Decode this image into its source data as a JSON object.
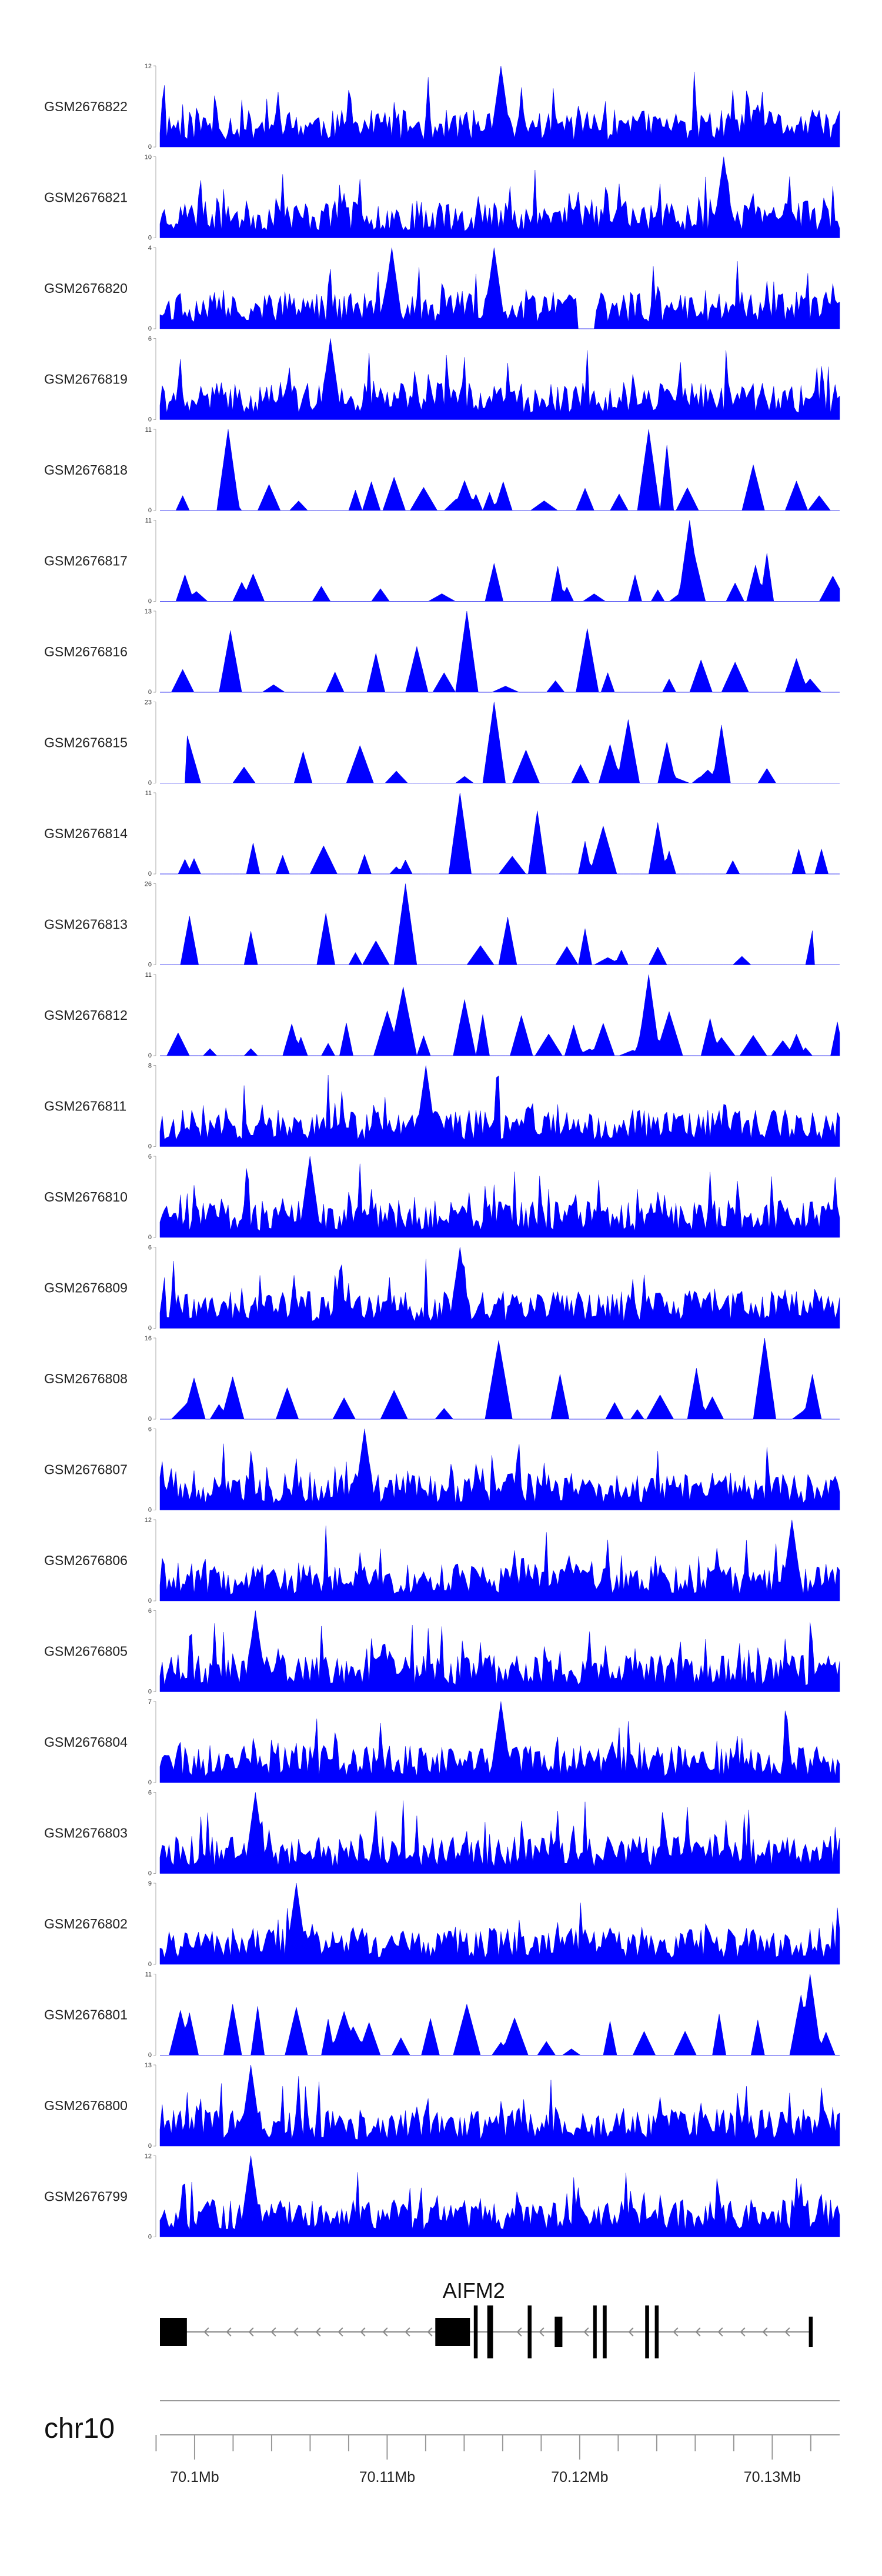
{
  "chart_data": {
    "type": "area",
    "title": "",
    "chromosome": "chr10",
    "gene": {
      "name": "AIFM2",
      "strand": "-"
    },
    "region": {
      "start_mb": 70.0982,
      "end_mb": 70.1335
    },
    "x_ticks": [
      {
        "mb": 70.1,
        "label": "70.1Mb"
      },
      {
        "mb": 70.11,
        "label": "70.11Mb"
      },
      {
        "mb": 70.12,
        "label": "70.12Mb"
      },
      {
        "mb": 70.13,
        "label": "70.13Mb"
      }
    ],
    "minor_ticks_mb": [
      70.098,
      70.102,
      70.104,
      70.106,
      70.108,
      70.112,
      70.114,
      70.116,
      70.118,
      70.122,
      70.124,
      70.126,
      70.128,
      70.132
    ],
    "exons": [
      {
        "start": 70.0982,
        "end": 70.0996,
        "height": "large"
      },
      {
        "start": 70.1125,
        "end": 70.1143,
        "height": "large"
      },
      {
        "start": 70.1145,
        "end": 70.1147,
        "height": "tall"
      },
      {
        "start": 70.1152,
        "end": 70.1155,
        "height": "tall"
      },
      {
        "start": 70.1173,
        "end": 70.1175,
        "height": "tall"
      },
      {
        "start": 70.1187,
        "end": 70.1191,
        "height": "mid"
      },
      {
        "start": 70.1207,
        "end": 70.1208,
        "height": "tall"
      },
      {
        "start": 70.1212,
        "end": 70.1214,
        "height": "tall"
      },
      {
        "start": 70.1234,
        "end": 70.1236,
        "height": "tall"
      },
      {
        "start": 70.1239,
        "end": 70.1241,
        "height": "tall"
      },
      {
        "start": 70.1319,
        "end": 70.1321,
        "height": "mid"
      }
    ],
    "series": [
      {
        "name": "GSM2676822",
        "ymax": 12,
        "sparsity": 0.0,
        "seed": 11,
        "peaks": [
          {
            "x": 0.5,
            "v": 12
          }
        ]
      },
      {
        "name": "GSM2676821",
        "ymax": 10,
        "sparsity": 0.0,
        "seed": 23,
        "peaks": [
          {
            "x": 0.83,
            "v": 10
          }
        ]
      },
      {
        "name": "GSM2676820",
        "ymax": 4,
        "sparsity": 0.0,
        "seed": 37,
        "peaks": [
          {
            "x": 0.34,
            "v": 4
          },
          {
            "x": 0.49,
            "v": 4
          }
        ],
        "gaps": [
          [
            0.615,
            0.64
          ]
        ]
      },
      {
        "name": "GSM2676819",
        "ymax": 6,
        "sparsity": 0.0,
        "seed": 41,
        "peaks": [
          {
            "x": 0.25,
            "v": 6
          }
        ]
      },
      {
        "name": "GSM2676818",
        "ymax": 11,
        "sparsity": 0.58,
        "seed": 53,
        "peaks": [
          {
            "x": 0.1,
            "v": 11
          },
          {
            "x": 0.72,
            "v": 11
          }
        ],
        "gaps": [
          [
            0.0,
            0.025
          ]
        ]
      },
      {
        "name": "GSM2676817",
        "ymax": 11,
        "sparsity": 0.62,
        "seed": 67,
        "peaks": [
          {
            "x": 0.78,
            "v": 11
          }
        ]
      },
      {
        "name": "GSM2676816",
        "ymax": 13,
        "sparsity": 0.55,
        "seed": 71,
        "peaks": [
          {
            "x": 0.45,
            "v": 13
          }
        ]
      },
      {
        "name": "GSM2676815",
        "ymax": 23,
        "sparsity": 0.72,
        "seed": 83,
        "peaks": [
          {
            "x": 0.49,
            "v": 23
          },
          {
            "x": 0.69,
            "v": 18
          }
        ],
        "gaps": [
          [
            0.0,
            0.04
          ],
          [
            0.965,
            1.0
          ]
        ]
      },
      {
        "name": "GSM2676814",
        "ymax": 11,
        "sparsity": 0.6,
        "seed": 97,
        "peaks": [
          {
            "x": 0.44,
            "v": 11
          }
        ]
      },
      {
        "name": "GSM2676813",
        "ymax": 26,
        "sparsity": 0.8,
        "seed": 101,
        "peaks": [
          {
            "x": 0.36,
            "v": 26
          }
        ],
        "gaps": [
          [
            0.96,
            1.0
          ]
        ]
      },
      {
        "name": "GSM2676812",
        "ymax": 11,
        "sparsity": 0.25,
        "seed": 113,
        "peaks": [
          {
            "x": 0.72,
            "v": 11
          }
        ]
      },
      {
        "name": "GSM2676811",
        "ymax": 8,
        "sparsity": 0.0,
        "seed": 127,
        "peaks": [
          {
            "x": 0.39,
            "v": 8
          }
        ]
      },
      {
        "name": "GSM2676810",
        "ymax": 6,
        "sparsity": 0.0,
        "seed": 131,
        "peaks": [
          {
            "x": 0.22,
            "v": 6
          }
        ]
      },
      {
        "name": "GSM2676809",
        "ymax": 6,
        "sparsity": 0.0,
        "seed": 149,
        "peaks": [
          {
            "x": 0.44,
            "v": 6
          }
        ]
      },
      {
        "name": "GSM2676808",
        "ymax": 16,
        "sparsity": 0.55,
        "seed": 151,
        "peaks": [
          {
            "x": 0.89,
            "v": 16
          }
        ]
      },
      {
        "name": "GSM2676807",
        "ymax": 6,
        "sparsity": 0.0,
        "seed": 163,
        "peaks": [
          {
            "x": 0.3,
            "v": 6
          }
        ]
      },
      {
        "name": "GSM2676806",
        "ymax": 12,
        "sparsity": 0.0,
        "seed": 173,
        "peaks": [
          {
            "x": 0.93,
            "v": 12
          }
        ]
      },
      {
        "name": "GSM2676805",
        "ymax": 6,
        "sparsity": 0.0,
        "seed": 181,
        "peaks": [
          {
            "x": 0.14,
            "v": 6
          }
        ]
      },
      {
        "name": "GSM2676804",
        "ymax": 7,
        "sparsity": 0.0,
        "seed": 191,
        "peaks": [
          {
            "x": 0.5,
            "v": 7
          }
        ]
      },
      {
        "name": "GSM2676803",
        "ymax": 6,
        "sparsity": 0.0,
        "seed": 197,
        "peaks": [
          {
            "x": 0.14,
            "v": 6
          }
        ]
      },
      {
        "name": "GSM2676802",
        "ymax": 9,
        "sparsity": 0.0,
        "seed": 211,
        "peaks": [
          {
            "x": 0.2,
            "v": 9
          }
        ]
      },
      {
        "name": "GSM2676801",
        "ymax": 11,
        "sparsity": 0.3,
        "seed": 223,
        "peaks": [
          {
            "x": 0.955,
            "v": 11
          }
        ]
      },
      {
        "name": "GSM2676800",
        "ymax": 13,
        "sparsity": 0.0,
        "seed": 227,
        "peaks": [
          {
            "x": 0.135,
            "v": 13
          }
        ]
      },
      {
        "name": "GSM2676799",
        "ymax": 12,
        "sparsity": 0.0,
        "seed": 239,
        "peaks": [
          {
            "x": 0.135,
            "v": 12
          }
        ]
      }
    ]
  }
}
